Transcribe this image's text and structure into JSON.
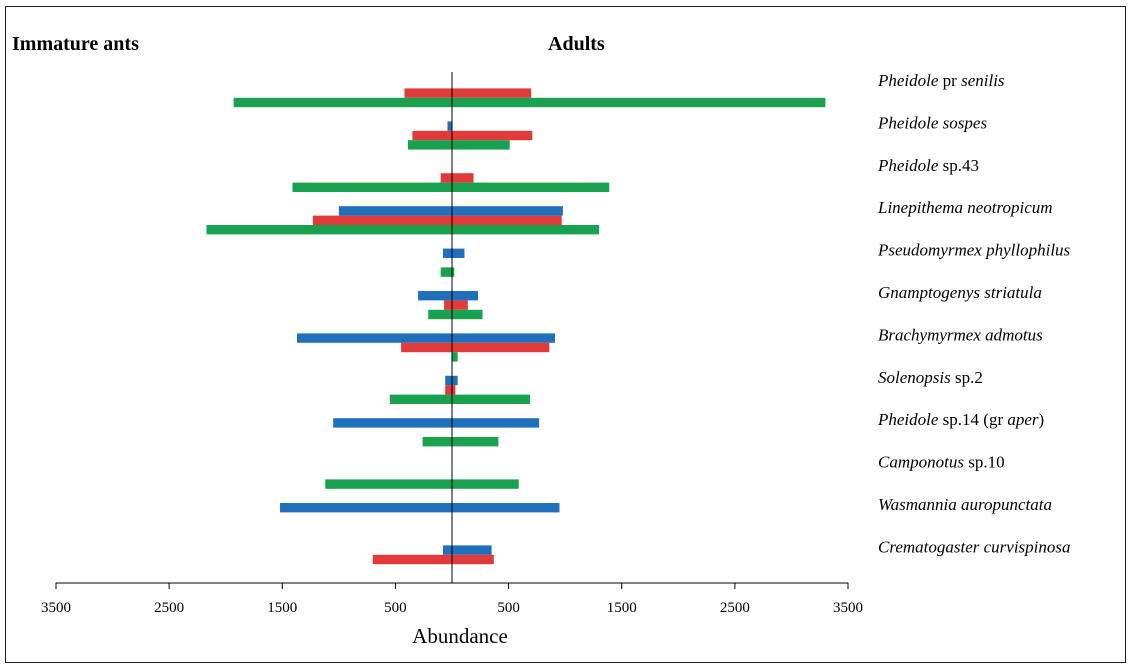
{
  "headers": {
    "left": "Immature ants",
    "right": "Adults"
  },
  "colors": {
    "blue": "#1f6fbd",
    "red": "#e03a3a",
    "green": "#1aa14f",
    "axis": "#000000"
  },
  "chart_data": {
    "type": "bar",
    "orientation": "horizontal",
    "xlabel": "Abundance",
    "xlim": [
      -3500,
      3500
    ],
    "xticks": [
      -3500,
      -2500,
      -1500,
      -500,
      500,
      1500,
      2500,
      3500
    ],
    "xtick_labels": [
      "3500",
      "2500",
      "1500",
      "500",
      "500",
      "1500",
      "2500",
      "3500"
    ],
    "categories": [
      {
        "parts": [
          [
            "Pheidole",
            true
          ],
          [
            " pr ",
            false
          ],
          [
            "senilis",
            true
          ]
        ]
      },
      {
        "parts": [
          [
            "Pheidole sospes",
            true
          ]
        ]
      },
      {
        "parts": [
          [
            "Pheidole",
            true
          ],
          [
            " sp.43",
            false
          ]
        ]
      },
      {
        "parts": [
          [
            "Linepithema neotropicum",
            true
          ]
        ]
      },
      {
        "parts": [
          [
            "Pseudomyrmex phyllophilus",
            true
          ]
        ]
      },
      {
        "parts": [
          [
            "Gnamptogenys striatula",
            true
          ]
        ]
      },
      {
        "parts": [
          [
            "Brachymyrmex admotus",
            true
          ]
        ]
      },
      {
        "parts": [
          [
            "Solenopsis",
            true
          ],
          [
            " sp.2",
            false
          ]
        ]
      },
      {
        "parts": [
          [
            "Pheidole",
            true
          ],
          [
            " sp.14 (gr ",
            false
          ],
          [
            "aper",
            true
          ],
          [
            ")",
            false
          ]
        ]
      },
      {
        "parts": [
          [
            "Camponotus",
            true
          ],
          [
            " sp.10",
            false
          ]
        ]
      },
      {
        "parts": [
          [
            "Wasmannia auropunctata",
            true
          ]
        ]
      },
      {
        "parts": [
          [
            "Crematogaster curvispinosa",
            true
          ]
        ]
      }
    ],
    "series": [
      {
        "color": "blue",
        "immature": [
          null,
          40,
          null,
          1000,
          80,
          300,
          1370,
          60,
          1050,
          null,
          1520,
          80
        ],
        "adults": [
          null,
          0,
          null,
          980,
          110,
          230,
          910,
          50,
          770,
          null,
          950,
          350
        ]
      },
      {
        "color": "red",
        "immature": [
          420,
          350,
          100,
          1230,
          null,
          70,
          450,
          60,
          null,
          null,
          null,
          700
        ],
        "adults": [
          700,
          710,
          190,
          970,
          null,
          140,
          860,
          30,
          null,
          null,
          null,
          370
        ]
      },
      {
        "color": "green",
        "immature": [
          1930,
          390,
          1410,
          2170,
          100,
          210,
          null,
          550,
          260,
          1120,
          null,
          null
        ],
        "adults": [
          3300,
          510,
          1390,
          1300,
          20,
          270,
          50,
          690,
          410,
          590,
          null,
          null
        ]
      }
    ]
  }
}
